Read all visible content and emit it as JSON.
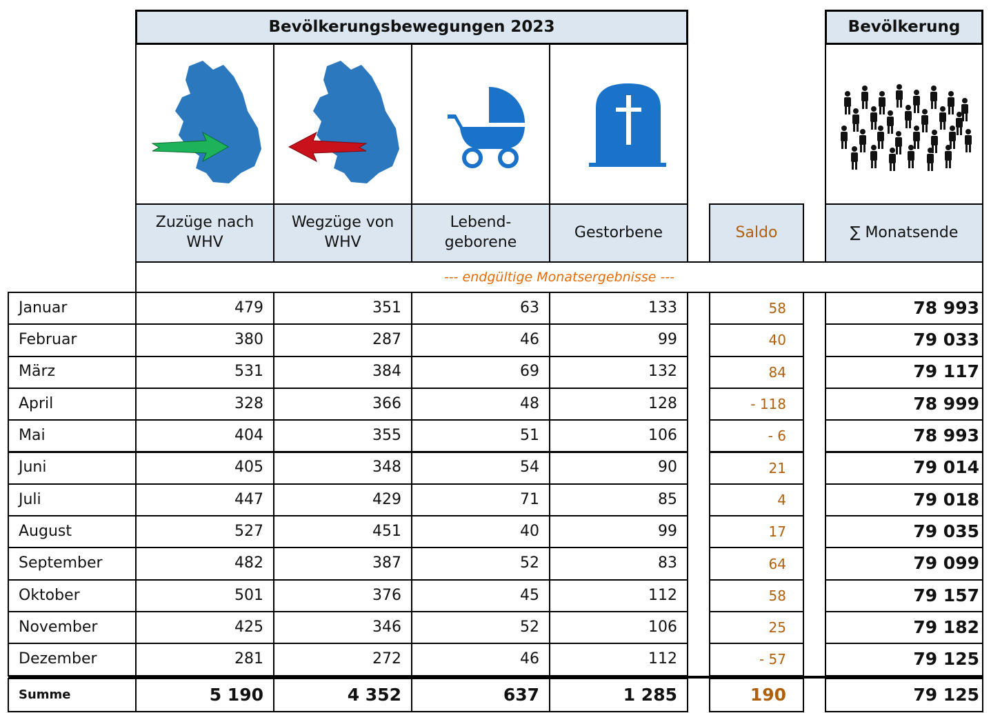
{
  "header": {
    "title": "Bevölkerungsbewegungen 2023",
    "population_title": "Bevölkerung"
  },
  "columns": [
    "Zuzüge nach WHV",
    "Wegzüge von WHV",
    "Lebend-geborene",
    "Gestorbene",
    "Saldo",
    "∑ Monatsende"
  ],
  "note": "--- endgültige Monatsergebnisse ---",
  "table": {
    "rows": [
      [
        "Januar",
        "479",
        "351",
        "63",
        "133",
        "58",
        "78 993"
      ],
      [
        "Februar",
        "380",
        "287",
        "46",
        "99",
        "40",
        "79 033"
      ],
      [
        "März",
        "531",
        "384",
        "69",
        "132",
        "84",
        "79 117"
      ],
      [
        "April",
        "328",
        "366",
        "48",
        "128",
        "- 118",
        "78 999"
      ],
      [
        "Mai",
        "404",
        "355",
        "51",
        "106",
        "- 6",
        "78 993"
      ],
      [
        "Juni",
        "405",
        "348",
        "54",
        "90",
        "21",
        "79 014"
      ],
      [
        "Juli",
        "447",
        "429",
        "71",
        "85",
        "4",
        "79 018"
      ],
      [
        "August",
        "527",
        "451",
        "40",
        "99",
        "17",
        "79 035"
      ],
      [
        "September",
        "482",
        "387",
        "52",
        "83",
        "64",
        "79 099"
      ],
      [
        "Oktober",
        "501",
        "376",
        "45",
        "112",
        "58",
        "79 157"
      ],
      [
        "November",
        "425",
        "346",
        "52",
        "106",
        "25",
        "79 182"
      ],
      [
        "Dezember",
        "281",
        "272",
        "46",
        "112",
        "- 57",
        "79 125"
      ]
    ],
    "total": [
      "Summe",
      "5 190",
      "4 352",
      "637",
      "1 285",
      "190",
      "79 125"
    ]
  }
}
